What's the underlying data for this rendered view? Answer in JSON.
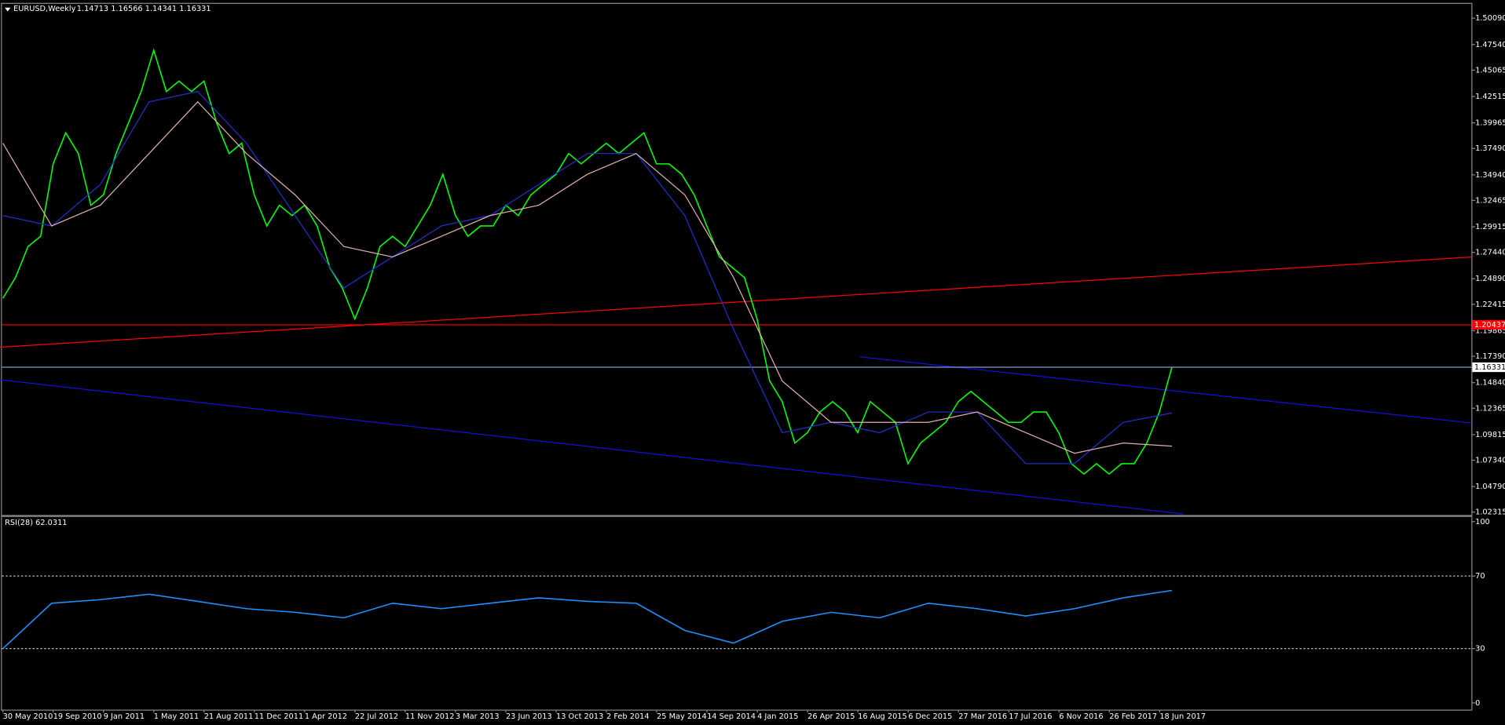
{
  "chart_data": [
    {
      "type": "line",
      "title": "EURUSD,Weekly",
      "subtitle": "1.14713 1.16566 1.14341 1.16331",
      "ylim": [
        1.0204,
        1.5148
      ],
      "yticks": [
        {
          "value": 1.5009,
          "label": "1.50090"
        },
        {
          "value": 1.4754,
          "label": "1.47540"
        },
        1.45065,
        1.42515,
        1.39965,
        {
          "value": 1.3749,
          "label": "1.37490"
        },
        {
          "value": 1.3494,
          "label": "1.34940"
        },
        1.32465,
        1.29915,
        {
          "value": 1.2744,
          "label": "1.27440"
        },
        {
          "value": 1.2489,
          "label": "1.24890"
        },
        1.22415,
        1.19865,
        {
          "value": 1.1739,
          "label": "1.17390"
        },
        {
          "value": 1.1484,
          "label": "1.14840"
        },
        1.12365,
        1.09815,
        {
          "value": 1.0734,
          "label": "1.07340"
        },
        {
          "value": 1.0479,
          "label": "1.04790"
        },
        1.02315
      ],
      "xtick_labels": [
        "30 May 2010",
        "19 Sep 2010",
        "9 Jan 2011",
        "1 May 2011",
        "21 Aug 2011",
        "11 Dec 2011",
        "1 Apr 2012",
        "22 Jul 2012",
        "11 Nov 2012",
        "3 Mar 2013",
        "23 Jun 2013",
        "13 Oct 2013",
        "2 Feb 2014",
        "25 May 2014",
        "14 Sep 2014",
        "4 Jan 2015",
        "26 Apr 2015",
        "16 Aug 2015",
        "6 Dec 2015",
        "27 Mar 2016",
        "17 Jul 2016",
        "6 Nov 2016",
        "26 Feb 2017",
        "18 Jun 2017"
      ],
      "series": [
        {
          "color": "#00ff00",
          "values": [
            1.23,
            1.25,
            1.28,
            1.29,
            1.36,
            1.39,
            1.37,
            1.32,
            1.33,
            1.37,
            1.4,
            1.43,
            1.47,
            1.43,
            1.44,
            1.43,
            1.44,
            1.4,
            1.37,
            1.38,
            1.33,
            1.3,
            1.32,
            1.31,
            1.32,
            1.3,
            1.26,
            1.24,
            1.21,
            1.24,
            1.28,
            1.29,
            1.28,
            1.3,
            1.32,
            1.35,
            1.31,
            1.29,
            1.3,
            1.3,
            1.32,
            1.31,
            1.33,
            1.34,
            1.35,
            1.37,
            1.36,
            1.37,
            1.38,
            1.37,
            1.38,
            1.39,
            1.36,
            1.36,
            1.35,
            1.33,
            1.3,
            1.27,
            1.26,
            1.25,
            1.21,
            1.15,
            1.13,
            1.09,
            1.1,
            1.12,
            1.13,
            1.12,
            1.1,
            1.13,
            1.12,
            1.11,
            1.07,
            1.09,
            1.1,
            1.11,
            1.13,
            1.14,
            1.13,
            1.12,
            1.11,
            1.11,
            1.12,
            1.12,
            1.1,
            1.07,
            1.06,
            1.07,
            1.06,
            1.07,
            1.07,
            1.09,
            1.12,
            1.16331
          ]
        },
        {
          "color": "#2030d0",
          "values": [
            1.31,
            1.3,
            1.34,
            1.42,
            1.43,
            1.38,
            1.31,
            1.24,
            1.27,
            1.3,
            1.31,
            1.34,
            1.37,
            1.37,
            1.31,
            1.2,
            1.1,
            1.11,
            1.1,
            1.12,
            1.12,
            1.07,
            1.07,
            1.11,
            1.119
          ]
        },
        {
          "color": "#e0b0a8",
          "values": [
            1.38,
            1.3,
            1.32,
            1.37,
            1.42,
            1.37,
            1.33,
            1.28,
            1.27,
            1.29,
            1.31,
            1.32,
            1.35,
            1.37,
            1.33,
            1.25,
            1.15,
            1.11,
            1.11,
            1.11,
            1.12,
            1.1,
            1.08,
            1.09,
            1.087
          ]
        }
      ],
      "levels": [
        {
          "value": 1.20437,
          "color": "#ff0000"
        },
        {
          "value": 1.16331,
          "color": "#7f9fcf"
        }
      ],
      "trendlines": [
        {
          "color": "#ff0000",
          "values": [
            1.1827,
            1.2699
          ]
        },
        {
          "color": "#1010e0",
          "values": [
            1.1734,
            1.1094
          ]
        },
        {
          "color": "#1010e0",
          "values": [
            1.1512,
            1.0213
          ]
        }
      ]
    },
    {
      "type": "line",
      "title": "RSI(28) 62.0311",
      "ylim": [
        -3.7,
        102.1
      ],
      "yticks": [
        100,
        70,
        30,
        0
      ],
      "levels": [
        70,
        30
      ],
      "series": [
        {
          "color": "#1e90ff",
          "values": [
            30,
            55,
            57,
            60,
            56,
            52,
            50,
            47,
            55,
            52,
            55,
            58,
            56,
            55,
            40,
            33,
            45,
            50,
            47,
            55,
            52,
            48,
            52,
            58,
            62.0311
          ]
        }
      ]
    }
  ]
}
